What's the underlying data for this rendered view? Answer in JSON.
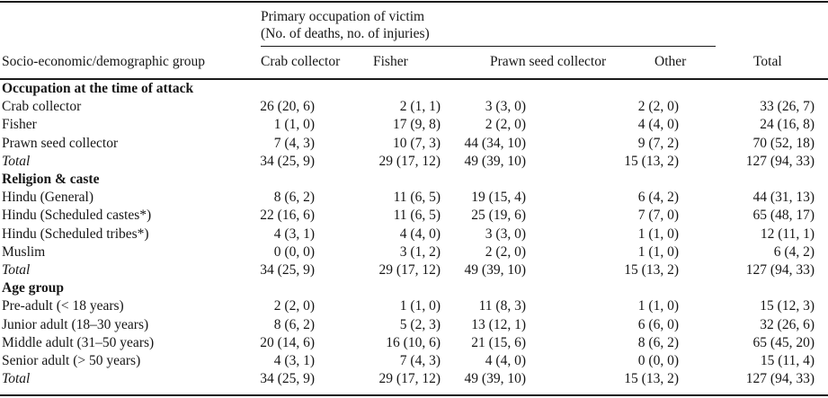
{
  "colors": {
    "text": "#161616",
    "rule": "#1a1a1a",
    "background": "#ffffff"
  },
  "table": {
    "col_group_header": {
      "line1": "Primary occupation of victim",
      "line2": "(No. of deaths, no. of injuries)"
    },
    "row_header": "Socio-economic/demographic group",
    "columns": [
      "Crab collector",
      "Fisher",
      "Prawn seed collector",
      "Other",
      "Total"
    ],
    "sections": [
      {
        "title": "Occupation at the time of attack",
        "rows": [
          {
            "label": "Crab collector",
            "italic": false,
            "values": [
              "26 (20, 6)",
              "2 (1, 1)",
              "3 (3, 0)",
              "2 (2, 0)",
              "33 (26, 7)"
            ]
          },
          {
            "label": "Fisher",
            "italic": false,
            "values": [
              "1 (1, 0)",
              "17 (9, 8)",
              "2 (2, 0)",
              "4 (4, 0)",
              "24 (16, 8)"
            ]
          },
          {
            "label": "Prawn seed collector",
            "italic": false,
            "values": [
              "7 (4, 3)",
              "10 (7, 3)",
              "44 (34, 10)",
              "9 (7, 2)",
              "70 (52, 18)"
            ]
          },
          {
            "label": "Total",
            "italic": true,
            "values": [
              "34 (25, 9)",
              "29 (17, 12)",
              "49 (39, 10)",
              "15 (13, 2)",
              "127 (94, 33)"
            ]
          }
        ]
      },
      {
        "title": "Religion & caste",
        "rows": [
          {
            "label": "Hindu (General)",
            "italic": false,
            "values": [
              "8 (6, 2)",
              "11 (6, 5)",
              "19 (15, 4)",
              "6 (4, 2)",
              "44 (31, 13)"
            ]
          },
          {
            "label": "Hindu (Scheduled castes*)",
            "italic": false,
            "values": [
              "22 (16, 6)",
              "11 (6, 5)",
              "25 (19, 6)",
              "7 (7, 0)",
              "65 (48, 17)"
            ]
          },
          {
            "label": "Hindu (Scheduled tribes*)",
            "italic": false,
            "values": [
              "4 (3, 1)",
              "4 (4, 0)",
              "3 (3, 0)",
              "1 (1, 0)",
              "12 (11, 1)"
            ]
          },
          {
            "label": "Muslim",
            "italic": false,
            "values": [
              "0 (0, 0)",
              "3 (1, 2)",
              "2 (2, 0)",
              "1 (1, 0)",
              "6 (4, 2)"
            ]
          },
          {
            "label": "Total",
            "italic": true,
            "values": [
              "34 (25, 9)",
              "29 (17, 12)",
              "49 (39, 10)",
              "15 (13, 2)",
              "127 (94, 33)"
            ]
          }
        ]
      },
      {
        "title": "Age group",
        "rows": [
          {
            "label": "Pre-adult (< 18 years)",
            "italic": false,
            "values": [
              "2 (2, 0)",
              "1 (1, 0)",
              "11 (8, 3)",
              "1 (1, 0)",
              "15 (12, 3)"
            ]
          },
          {
            "label": "Junior adult (18–30 years)",
            "italic": false,
            "values": [
              "8 (6, 2)",
              "5 (2, 3)",
              "13 (12, 1)",
              "6 (6, 0)",
              "32 (26, 6)"
            ]
          },
          {
            "label": "Middle adult (31–50 years)",
            "italic": false,
            "values": [
              "20 (14, 6)",
              "16 (10, 6)",
              "21 (15, 6)",
              "8 (6, 2)",
              "65 (45, 20)"
            ]
          },
          {
            "label": "Senior adult (> 50 years)",
            "italic": false,
            "values": [
              "4 (3, 1)",
              "7 (4, 3)",
              "4 (4, 0)",
              "0 (0, 0)",
              "15 (11, 4)"
            ]
          },
          {
            "label": "Total",
            "italic": true,
            "values": [
              "34 (25, 9)",
              "29 (17, 12)",
              "49 (39, 10)",
              "15 (13, 2)",
              "127 (94, 33)"
            ]
          }
        ]
      }
    ]
  }
}
